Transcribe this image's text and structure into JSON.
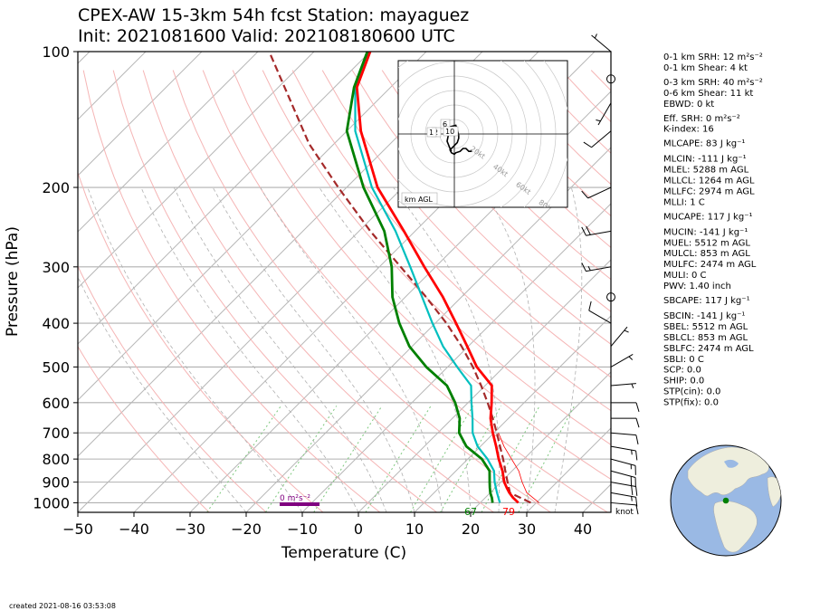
{
  "chart_data": {
    "type": "skew-t",
    "title_line1": "CPEX-AW 15-3km  54h fcst  Station: mayaguez",
    "title_line2": "Init: 2021081600  Valid: 202108180600 UTC",
    "xlabel": "Temperature (C)",
    "ylabel": "Pressure (hPa)",
    "xlim": [
      -50,
      45
    ],
    "ylim": [
      1050,
      100
    ],
    "y_scale": "log",
    "x_ticks": [
      "−50",
      "−40",
      "−30",
      "−20",
      "−10",
      "0",
      "10",
      "20",
      "30",
      "40"
    ],
    "y_ticks": [
      "100",
      "200",
      "300",
      "400",
      "500",
      "600",
      "700",
      "800",
      "900",
      "1000"
    ],
    "skew_deg": 45,
    "temperature_profile": [
      {
        "p": 1000,
        "t": 26.8
      },
      {
        "p": 975,
        "t": 25.0
      },
      {
        "p": 950,
        "t": 23.4
      },
      {
        "p": 925,
        "t": 22.0
      },
      {
        "p": 900,
        "t": 20.6
      },
      {
        "p": 850,
        "t": 18.3
      },
      {
        "p": 800,
        "t": 15.5
      },
      {
        "p": 750,
        "t": 12.8
      },
      {
        "p": 700,
        "t": 9.8
      },
      {
        "p": 650,
        "t": 6.8
      },
      {
        "p": 600,
        "t": 4.2
      },
      {
        "p": 550,
        "t": 1.2
      },
      {
        "p": 500,
        "t": -4.8
      },
      {
        "p": 450,
        "t": -10.2
      },
      {
        "p": 400,
        "t": -16.3
      },
      {
        "p": 350,
        "t": -23.3
      },
      {
        "p": 300,
        "t": -32.0
      },
      {
        "p": 250,
        "t": -42.0
      },
      {
        "p": 200,
        "t": -54.5
      },
      {
        "p": 150,
        "t": -67.5
      },
      {
        "p": 120,
        "t": -76.0
      },
      {
        "p": 100,
        "t": -80.0
      }
    ],
    "dewpoint_profile": [
      {
        "p": 1000,
        "td": 22.2
      },
      {
        "p": 975,
        "td": 21.2
      },
      {
        "p": 950,
        "td": 20.0
      },
      {
        "p": 925,
        "td": 19.0
      },
      {
        "p": 900,
        "td": 18.0
      },
      {
        "p": 850,
        "td": 16.0
      },
      {
        "p": 800,
        "td": 12.5
      },
      {
        "p": 750,
        "td": 7.5
      },
      {
        "p": 700,
        "td": 3.8
      },
      {
        "p": 650,
        "td": 1.3
      },
      {
        "p": 600,
        "td": -2.3
      },
      {
        "p": 550,
        "td": -6.8
      },
      {
        "p": 500,
        "td": -13.8
      },
      {
        "p": 450,
        "td": -20.5
      },
      {
        "p": 400,
        "td": -26.4
      },
      {
        "p": 350,
        "td": -32.3
      },
      {
        "p": 300,
        "td": -37.8
      },
      {
        "p": 250,
        "td": -45.5
      },
      {
        "p": 200,
        "td": -57.0
      },
      {
        "p": 150,
        "td": -70.0
      },
      {
        "p": 120,
        "td": -76.5
      },
      {
        "p": 100,
        "td": -80.5
      }
    ],
    "wetbulb_profile": [
      {
        "p": 1000,
        "t": 23.5
      },
      {
        "p": 950,
        "t": 21.2
      },
      {
        "p": 900,
        "t": 18.9
      },
      {
        "p": 850,
        "t": 16.8
      },
      {
        "p": 800,
        "t": 13.5
      },
      {
        "p": 750,
        "t": 9.5
      },
      {
        "p": 700,
        "t": 6.2
      },
      {
        "p": 650,
        "t": 3.6
      },
      {
        "p": 600,
        "t": 0.6
      },
      {
        "p": 550,
        "t": -2.5
      },
      {
        "p": 500,
        "t": -8.3
      },
      {
        "p": 450,
        "t": -14.5
      },
      {
        "p": 400,
        "t": -20.5
      },
      {
        "p": 350,
        "t": -27.0
      },
      {
        "p": 300,
        "t": -34.5
      },
      {
        "p": 250,
        "t": -43.5
      },
      {
        "p": 200,
        "t": -55.5
      },
      {
        "p": 150,
        "t": -68.5
      },
      {
        "p": 120,
        "t": -76.3
      },
      {
        "p": 100,
        "t": -80.2
      }
    ],
    "parcel_profile": [
      {
        "p": 1000,
        "t": 29.0
      },
      {
        "p": 950,
        "t": 23.5
      },
      {
        "p": 900,
        "t": 21.2
      },
      {
        "p": 850,
        "t": 18.8
      },
      {
        "p": 800,
        "t": 16.3
      },
      {
        "p": 750,
        "t": 13.5
      },
      {
        "p": 700,
        "t": 10.5
      },
      {
        "p": 650,
        "t": 7.2
      },
      {
        "p": 600,
        "t": 3.5
      },
      {
        "p": 550,
        "t": -0.7
      },
      {
        "p": 500,
        "t": -5.5
      },
      {
        "p": 450,
        "t": -11.2
      },
      {
        "p": 400,
        "t": -18.0
      },
      {
        "p": 350,
        "t": -26.3
      },
      {
        "p": 300,
        "t": -36.2
      },
      {
        "p": 250,
        "t": -48.0
      },
      {
        "p": 200,
        "t": -61.5
      },
      {
        "p": 160,
        "t": -74.5
      },
      {
        "p": 100,
        "t": -98.0
      }
    ],
    "virtual_temperature_profile": [
      {
        "p": 1000,
        "t": 30.5
      },
      {
        "p": 950,
        "t": 26.5
      },
      {
        "p": 900,
        "t": 23.8
      },
      {
        "p": 850,
        "t": 21.2
      },
      {
        "p": 800,
        "t": 17.8
      },
      {
        "p": 750,
        "t": 14.2
      },
      {
        "p": 700,
        "t": 10.8
      }
    ],
    "surface_temp_label": "79",
    "surface_dewpoint_label": "67",
    "srh_bar_label": "0 m²s⁻²",
    "wind_unit_label": "knot",
    "hodograph": {
      "ring_labels": [
        "20kt",
        "40kt",
        "60kt",
        "80kt"
      ],
      "height_labels": [
        "6",
        "10",
        "2",
        "1"
      ],
      "legend": "km AGL",
      "trace_uv": [
        [
          -2,
          -12
        ],
        [
          -3,
          -10
        ],
        [
          -5,
          -5
        ],
        [
          -3,
          5
        ],
        [
          1,
          6
        ],
        [
          2,
          3
        ],
        [
          3,
          -1
        ],
        [
          3,
          -3
        ],
        [
          2,
          -6
        ],
        [
          -1,
          -9
        ],
        [
          -3,
          -11
        ],
        [
          -2,
          -13
        ],
        [
          0,
          -14
        ],
        [
          1,
          -13
        ],
        [
          4,
          -12
        ],
        [
          5,
          -11
        ],
        [
          6,
          -10
        ],
        [
          8,
          -10
        ],
        [
          10,
          -12
        ],
        [
          12,
          -12
        ]
      ]
    },
    "wind_barbs": [
      {
        "p": 1000,
        "dir": 95,
        "spd": 12
      },
      {
        "p": 950,
        "dir": 100,
        "spd": 15
      },
      {
        "p": 900,
        "dir": 100,
        "spd": 18
      },
      {
        "p": 850,
        "dir": 105,
        "spd": 18
      },
      {
        "p": 800,
        "dir": 105,
        "spd": 15
      },
      {
        "p": 750,
        "dir": 100,
        "spd": 15
      },
      {
        "p": 700,
        "dir": 95,
        "spd": 12
      },
      {
        "p": 650,
        "dir": 90,
        "spd": 10
      },
      {
        "p": 600,
        "dir": 90,
        "spd": 10
      },
      {
        "p": 550,
        "dir": 85,
        "spd": 5
      },
      {
        "p": 500,
        "dir": 60,
        "spd": 5
      },
      {
        "p": 450,
        "dir": 40,
        "spd": 5
      },
      {
        "p": 400,
        "dir": 300,
        "spd": 10
      },
      {
        "p": 350,
        "dir": 0,
        "spd": 0
      },
      {
        "p": 300,
        "dir": 260,
        "spd": 15
      },
      {
        "p": 250,
        "dir": 260,
        "spd": 20
      },
      {
        "p": 200,
        "dir": 245,
        "spd": 10
      },
      {
        "p": 150,
        "dir": 230,
        "spd": 10
      },
      {
        "p": 130,
        "dir": 210,
        "spd": 5
      },
      {
        "p": 115,
        "dir": 0,
        "spd": 0
      },
      {
        "p": 100,
        "dir": 310,
        "spd": 5
      }
    ],
    "indices": [
      "0-1 km SRH: 12 m²s⁻²",
      "0-1 km Shear: 4 kt",
      "0-3 km SRH: 40 m²s⁻²",
      "0-6 km Shear: 11 kt",
      "EBWD: 0 kt",
      "Eff. SRH: 0 m²s⁻²",
      "K-index: 16",
      "MLCAPE: 83 J kg⁻¹",
      "MLCIN: -111 J kg⁻¹",
      "MLEL: 5288 m AGL",
      "MLLCL: 1264 m AGL",
      "MLLFC: 2974 m AGL",
      "MLLI: 1 C",
      "MUCAPE: 117 J kg⁻¹",
      "MUCIN: -141 J kg⁻¹",
      "MUEL: 5512 m AGL",
      "MULCL: 853 m AGL",
      "MULFC: 2474 m AGL",
      "MULI: 0 C",
      "PWV: 1.40 inch",
      "SBCAPE: 117 J kg⁻¹",
      "SBCIN: -141 J kg⁻¹",
      "SBEL: 5512 m AGL",
      "SBLCL: 853 m AGL",
      "SBLFC: 2474 m AGL",
      "SBLI: 0 C",
      "SCP: 0.0",
      "SHIP: 0.0",
      "STP(cin): 0.0",
      "STP(fix): 0.0"
    ],
    "created": "created 2021-08-16 03:53:08",
    "colors": {
      "temperature": "#ff0000",
      "dewpoint": "#008000",
      "wetbulb": "#00bfbf",
      "parcel": "#a52a2a",
      "srh_bar": "#800080",
      "dry_adiabat": "#f5b5b5",
      "moist_adiabat": "#b0b0b0",
      "mixing_ratio": "#7ec87e",
      "globe_ocean": "#9ab9e4",
      "globe_land": "#eeeedd",
      "station_dot": "#008000"
    }
  }
}
